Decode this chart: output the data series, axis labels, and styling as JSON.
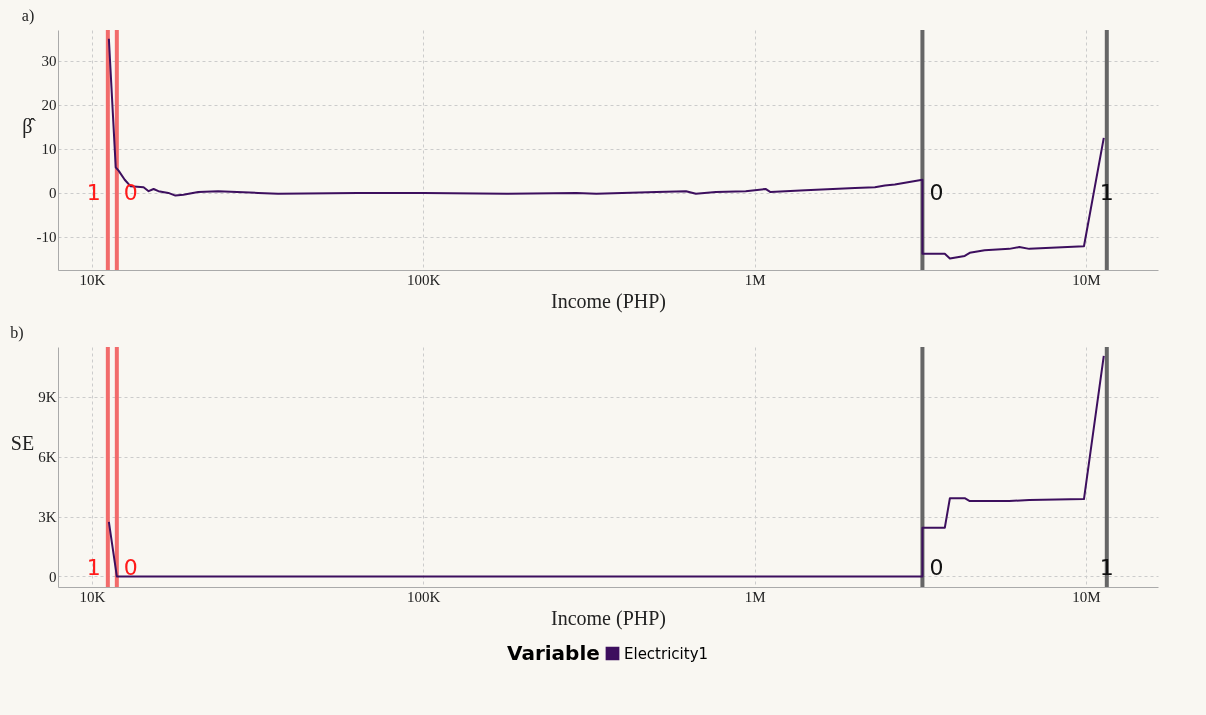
{
  "chart_data": [
    {
      "type": "line",
      "title": "a)",
      "xlabel": "Income (PHP)",
      "ylabel": "β̂",
      "xlim": [
        7900,
        16500000
      ],
      "xticks": [
        {
          "value": 10000,
          "label": "10K"
        },
        {
          "value": 100000,
          "label": "100K"
        },
        {
          "value": 1000000,
          "label": "1M"
        },
        {
          "value": 10000000,
          "label": "10M"
        }
      ],
      "ylim": [
        -17.5,
        37
      ],
      "yticks": [
        -10,
        0,
        10,
        20,
        30
      ],
      "log": "x",
      "grid": true,
      "series": [
        {
          "color": "#3d0f5e",
          "x": [
            11250,
            11800,
            12050,
            12560,
            13090,
            14320,
            14830,
            15350,
            15880,
            17010,
            17860,
            18880,
            20940,
            24040,
            31740,
            36450,
            63400,
            100000,
            178600,
            289700,
            333000,
            504700,
            621000,
            665000,
            764000,
            940000,
            1079000,
            1117000,
            1422000,
            2009000,
            2307000,
            2473000,
            2650000,
            3210000,
            3210000,
            3750000,
            3885000,
            4307000,
            4460000,
            4946000,
            5872000,
            6293000,
            6744000,
            9863000,
            11320000
          ],
          "values": [
            35,
            5.8,
            5,
            3,
            1.5,
            1.3,
            0.4,
            0.9,
            0.4,
            0,
            -0.6,
            -0.4,
            0.2,
            0.4,
            0,
            -0.2,
            0,
            0,
            -0.2,
            0,
            -0.2,
            0.2,
            0.4,
            -0.2,
            0.2,
            0.4,
            0.9,
            0.2,
            0.6,
            1.1,
            1.3,
            1.7,
            1.9,
            3,
            -13.8,
            -13.8,
            -14.9,
            -14.3,
            -13.6,
            -13,
            -12.7,
            -12.3,
            -12.7,
            -12.1,
            12.5
          ]
        }
      ],
      "ref_lines": [
        {
          "axis": "x",
          "value": 11170,
          "color": "#f26b6b"
        },
        {
          "axis": "x",
          "value": 11890,
          "color": "#f26b6b"
        },
        {
          "axis": "x",
          "value": 3210000,
          "color": "#666666"
        },
        {
          "axis": "x",
          "value": 11560000,
          "color": "#666666"
        }
      ],
      "annotations": [
        {
          "text": "1",
          "x": 11170,
          "y": 0
        },
        {
          "text": "0",
          "x": 11890,
          "y": 0
        },
        {
          "text": "0",
          "x": 3210000,
          "y": 0
        },
        {
          "text": "1",
          "x": 11560000,
          "y": 0
        }
      ]
    },
    {
      "type": "line",
      "title": "b)",
      "xlabel": "Income (PHP)",
      "ylabel": "SE",
      "legend_title": "Variable",
      "xlim": [
        7900,
        16500000
      ],
      "xticks": [
        {
          "value": 10000,
          "label": "10K"
        },
        {
          "value": 100000,
          "label": "100K"
        },
        {
          "value": 1000000,
          "label": "1M"
        },
        {
          "value": 10000000,
          "label": "10M"
        }
      ],
      "ylim": [
        -530,
        11500
      ],
      "yticks": [
        0,
        {
          "value": 3000,
          "label": "3K"
        },
        {
          "value": 6000,
          "label": "6K"
        },
        {
          "value": 9000,
          "label": "9K"
        }
      ],
      "log": "x",
      "grid": true,
      "legend": "bottom",
      "series": [
        {
          "name": "Electricity1",
          "color": "#3d0f5e",
          "x": [
            11250,
            11890,
            3210000,
            3210000,
            3750000,
            3885000,
            4307000,
            4460000,
            5872000,
            6744000,
            9863000,
            11320000
          ],
          "values": [
            2730,
            0,
            0,
            2440,
            2440,
            3920,
            3920,
            3780,
            3780,
            3830,
            3880,
            11050
          ]
        }
      ],
      "ref_lines": [
        {
          "axis": "x",
          "value": 11170,
          "color": "#f26b6b"
        },
        {
          "axis": "x",
          "value": 11890,
          "color": "#f26b6b"
        },
        {
          "axis": "x",
          "value": 3210000,
          "color": "#666666"
        },
        {
          "axis": "x",
          "value": 11560000,
          "color": "#666666"
        }
      ],
      "annotations": [
        {
          "text": "1",
          "x": 11170,
          "y": 400
        },
        {
          "text": "0",
          "x": 11890,
          "y": 400
        },
        {
          "text": "0",
          "x": 3210000,
          "y": 400
        },
        {
          "text": "1",
          "x": 11560000,
          "y": 400
        }
      ]
    }
  ]
}
